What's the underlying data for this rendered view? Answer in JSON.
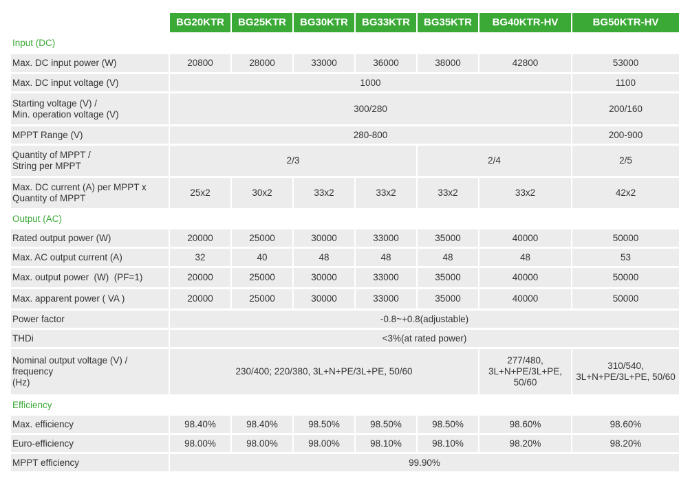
{
  "models": [
    "BG20KTR",
    "BG25KTR",
    "BG30KTR",
    "BG33KTR",
    "BG35KTR",
    "BG40KTR-HV",
    "BG50KTR-HV"
  ],
  "sections": {
    "input": "Input (DC)",
    "output": "Output (AC)",
    "efficiency": "Efficiency"
  },
  "rows": {
    "max_dc_power": {
      "label": "Max. DC input power (W)",
      "values": [
        "20800",
        "28000",
        "33000",
        "36000",
        "38000",
        "42800",
        "53000"
      ]
    },
    "max_dc_voltage": {
      "label": "Max. DC input voltage (V)",
      "values": [
        "1000",
        "1100"
      ]
    },
    "start_voltage": {
      "label1": "Starting voltage (V) /",
      "label2": "Min. operation voltage (V)",
      "values": [
        "300/280",
        "200/160"
      ]
    },
    "mppt_range": {
      "label": "MPPT Range (V)",
      "values": [
        "280-800",
        "200-900"
      ]
    },
    "mppt_qty": {
      "label1": "Quantity of MPPT /",
      "label2": "String per MPPT",
      "values": [
        "2/3",
        "2/4",
        "2/5"
      ]
    },
    "max_dc_current": {
      "label1": "Max. DC current (A) per MPPT x",
      "label2": "Quantity of MPPT",
      "values": [
        "25x2",
        "30x2",
        "33x2",
        "33x2",
        "33x2",
        "33x2",
        "42x2"
      ]
    },
    "rated_output": {
      "label": "Rated output power (W)",
      "values": [
        "20000",
        "25000",
        "30000",
        "33000",
        "35000",
        "40000",
        "50000"
      ]
    },
    "max_ac_current": {
      "label": "Max. AC output current (A)",
      "values": [
        "32",
        "40",
        "48",
        "48",
        "48",
        "48",
        "53"
      ]
    },
    "max_output_power": {
      "label": "Max. output power  (W)  (PF=1)",
      "values": [
        "20000",
        "25000",
        "30000",
        "33000",
        "35000",
        "40000",
        "50000"
      ]
    },
    "max_apparent": {
      "label": "Max. apparent power ( VA )",
      "values": [
        "20000",
        "25000",
        "30000",
        "33000",
        "35000",
        "40000",
        "50000"
      ]
    },
    "power_factor": {
      "label": "Power factor",
      "value": "-0.8~+0.8(adjustable)"
    },
    "thdi": {
      "label": "THDi",
      "value": "<3%(at rated power)"
    },
    "nominal_voltage": {
      "label1": "Nominal output voltage (V) / frequency",
      "label2": "(Hz)",
      "value_a": "230/400; 220/380, 3L+N+PE/3L+PE, 50/60",
      "value_b": [
        "277/480,",
        "3L+N+PE/3L+PE,",
        "50/60"
      ],
      "value_c": [
        "310/540,",
        "3L+N+PE/3L+PE, 50/60"
      ]
    },
    "max_eff": {
      "label": "Max. efficiency",
      "values": [
        "98.40%",
        "98.40%",
        "98.50%",
        "98.50%",
        "98.50%",
        "98.60%",
        "98.60%"
      ]
    },
    "euro_eff": {
      "label": "Euro-efficiency",
      "values": [
        "98.00%",
        "98.00%",
        "98.00%",
        "98.10%",
        "98.10%",
        "98.20%",
        "98.20%"
      ]
    },
    "mppt_eff": {
      "label": "MPPT efficiency",
      "value": "99.90%"
    }
  },
  "colors": {
    "accent": "#3aa935",
    "cell_bg": "#ececec",
    "text": "#333333"
  }
}
